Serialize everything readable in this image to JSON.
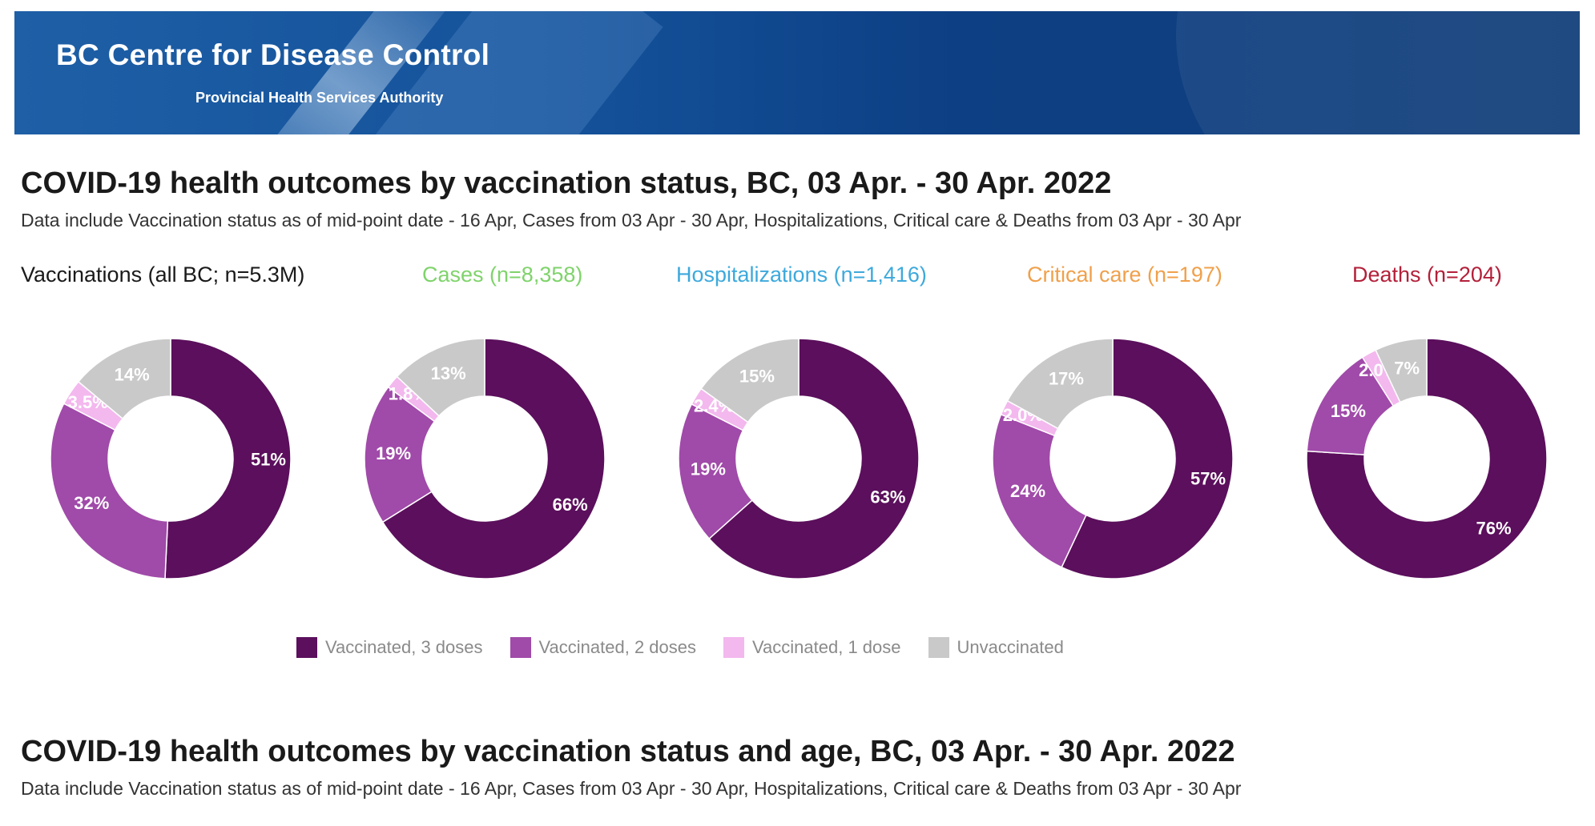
{
  "header": {
    "brand": "BC Centre for Disease Control",
    "subtitle": "Provincial Health Services Authority"
  },
  "section1": {
    "title": "COVID-19 health outcomes by vaccination status, BC,  03 Apr. - 30 Apr. 2022",
    "subtitle": "Data include Vaccination status as of mid-point date - 16 Apr, Cases  from  03 Apr - 30 Apr, Hospitalizations, Critical care & Deaths from 03 Apr - 30 Apr"
  },
  "section2": {
    "title": "COVID-19 health outcomes by vaccination status and age, BC,  03 Apr. - 30 Apr. 2022",
    "subtitle": "Data include Vaccination status as of mid-point date - 16 Apr, Cases  from  03 Apr - 30 Apr, Hospitalizations, Critical care & Deaths from 03 Apr - 30 Apr"
  },
  "colors": {
    "dose3": "#5b0f5c",
    "dose2": "#a04aa9",
    "dose1": "#f3b8ee",
    "unvax": "#c9c9c9"
  },
  "legend": [
    {
      "label": "Vaccinated, 3 doses",
      "color": "#5b0f5c"
    },
    {
      "label": "Vaccinated, 2 doses",
      "color": "#a04aa9"
    },
    {
      "label": "Vaccinated, 1 dose",
      "color": "#f3b8ee"
    },
    {
      "label": "Unvaccinated",
      "color": "#c9c9c9"
    }
  ],
  "chart_data": [
    {
      "type": "pie",
      "title": "Vaccinations (all BC; n=5.3M)",
      "title_color": "#1a1a1a",
      "categories": [
        "Vaccinated, 3 doses",
        "Vaccinated, 2 doses",
        "Vaccinated, 1 dose",
        "Unvaccinated"
      ],
      "values": [
        51,
        32,
        3.5,
        14
      ],
      "labels": [
        "51%",
        "32%",
        "3.5%",
        "14%"
      ]
    },
    {
      "type": "pie",
      "title": "Cases (n=8,358)",
      "title_color": "#7fd36b",
      "categories": [
        "Vaccinated, 3 doses",
        "Vaccinated, 2 doses",
        "Vaccinated, 1 dose",
        "Unvaccinated"
      ],
      "values": [
        66,
        19,
        1.8,
        13
      ],
      "labels": [
        "66%",
        "19%",
        "1.8%",
        "13%"
      ]
    },
    {
      "type": "pie",
      "title": "Hospitalizations (n=1,416)",
      "title_color": "#3da9dc",
      "categories": [
        "Vaccinated, 3 doses",
        "Vaccinated, 2 doses",
        "Vaccinated, 1 dose",
        "Unvaccinated"
      ],
      "values": [
        63,
        19,
        2.4,
        15
      ],
      "labels": [
        "63%",
        "19%",
        "2.4%",
        "15%"
      ]
    },
    {
      "type": "pie",
      "title": "Critical care (n=197)",
      "title_color": "#f0a04b",
      "categories": [
        "Vaccinated, 3 doses",
        "Vaccinated, 2 doses",
        "Vaccinated, 1 dose",
        "Unvaccinated"
      ],
      "values": [
        57,
        24,
        2.0,
        17
      ],
      "labels": [
        "57%",
        "24%",
        "2.0%",
        "17%"
      ]
    },
    {
      "type": "pie",
      "title": "Deaths (n=204)",
      "title_color": "#b3203a",
      "categories": [
        "Vaccinated, 3 doses",
        "Vaccinated, 2 doses",
        "Vaccinated, 1 dose",
        "Unvaccinated"
      ],
      "values": [
        76,
        15,
        2.0,
        7
      ],
      "labels": [
        "76%",
        "15%",
        "2.0%",
        "7%"
      ]
    }
  ]
}
